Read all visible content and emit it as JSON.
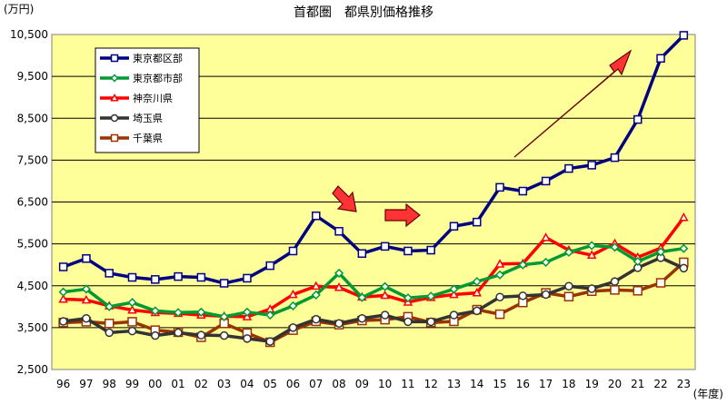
{
  "chart_data": {
    "type": "line",
    "title": "首都圏　都県別価格推移",
    "ylabel": "(万円)",
    "xlabel": "(年度)",
    "ylim": [
      2500,
      10500
    ],
    "yticks": [
      "2,500",
      "3,500",
      "4,500",
      "5,500",
      "6,500",
      "7,500",
      "8,500",
      "9,500",
      "10,500"
    ],
    "categories": [
      "96",
      "97",
      "98",
      "99",
      "00",
      "01",
      "02",
      "03",
      "04",
      "05",
      "06",
      "07",
      "08",
      "09",
      "10",
      "11",
      "12",
      "13",
      "14",
      "15",
      "16",
      "17",
      "18",
      "19",
      "20",
      "21",
      "22",
      "23"
    ],
    "grid": "horizontal",
    "legend_position": "top-left",
    "background": "#ffff99",
    "series": [
      {
        "name": "東京都区部",
        "color": "#000080",
        "marker": "square",
        "values": [
          4950,
          5150,
          4800,
          4700,
          4650,
          4720,
          4700,
          4560,
          4680,
          4980,
          5330,
          6170,
          5800,
          5270,
          5440,
          5330,
          5350,
          5920,
          6020,
          6850,
          6760,
          7000,
          7300,
          7380,
          7560,
          8470,
          9930,
          10480
        ]
      },
      {
        "name": "東京都市部",
        "color": "#009933",
        "marker": "diamond",
        "values": [
          4350,
          4420,
          4000,
          4100,
          3900,
          3860,
          3870,
          3760,
          3870,
          3800,
          4020,
          4280,
          4800,
          4220,
          4480,
          4210,
          4250,
          4420,
          4600,
          4760,
          5000,
          5060,
          5300,
          5460,
          5420,
          5080,
          5310,
          5390
        ]
      },
      {
        "name": "神奈川県",
        "color": "#ff0000",
        "marker": "triangle",
        "values": [
          4180,
          4160,
          4020,
          3920,
          3860,
          3840,
          3800,
          3770,
          3760,
          3940,
          4290,
          4490,
          4460,
          4230,
          4270,
          4110,
          4220,
          4290,
          4330,
          5020,
          5030,
          5650,
          5350,
          5230,
          5510,
          5180,
          5400,
          6130
        ]
      },
      {
        "name": "埼玉県",
        "color": "#333333",
        "marker": "circle",
        "values": [
          3650,
          3720,
          3380,
          3420,
          3310,
          3380,
          3320,
          3310,
          3240,
          3170,
          3500,
          3700,
          3600,
          3720,
          3800,
          3640,
          3640,
          3800,
          3900,
          4230,
          4260,
          4290,
          4490,
          4430,
          4600,
          4930,
          5170,
          4920
        ]
      },
      {
        "name": "千葉県",
        "color": "#993300",
        "marker": "square",
        "values": [
          3620,
          3640,
          3600,
          3640,
          3440,
          3390,
          3270,
          3600,
          3370,
          3150,
          3440,
          3650,
          3570,
          3670,
          3690,
          3760,
          3620,
          3650,
          3930,
          3820,
          4100,
          4330,
          4240,
          4370,
          4400,
          4380,
          4570,
          5060
        ]
      }
    ]
  }
}
